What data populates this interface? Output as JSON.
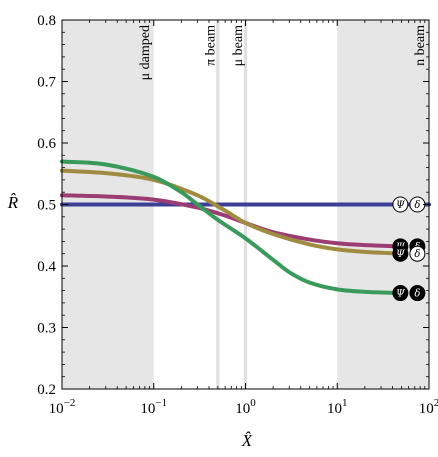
{
  "chart_data": {
    "type": "line",
    "xlabel": "X̂",
    "ylabel": "R̂",
    "xscale": "log",
    "xlim": [
      0.01,
      100
    ],
    "ylim": [
      0.2,
      0.8
    ],
    "xticks": [
      {
        "value": 0.01,
        "base": "10",
        "exp": "−2"
      },
      {
        "value": 0.1,
        "base": "10",
        "exp": "−1"
      },
      {
        "value": 1,
        "base": "10",
        "exp": "0"
      },
      {
        "value": 10,
        "base": "10",
        "exp": "1"
      },
      {
        "value": 100,
        "base": "10",
        "exp": "2"
      }
    ],
    "yticks": [
      {
        "value": 0.2,
        "label": "0.2"
      },
      {
        "value": 0.3,
        "label": "0.3"
      },
      {
        "value": 0.4,
        "label": "0.4"
      },
      {
        "value": 0.5,
        "label": "0.5"
      },
      {
        "value": 0.6,
        "label": "0.6"
      },
      {
        "value": 0.7,
        "label": "0.7"
      },
      {
        "value": 0.8,
        "label": "0.8"
      }
    ],
    "grid": false,
    "regions": [
      {
        "label": "μ damped",
        "from": 0.01,
        "to": 0.1,
        "color": "#e6e6e6"
      },
      {
        "label": "π beam",
        "from": 0.48,
        "to": 0.52,
        "color": "#e0e0e0"
      },
      {
        "label": "μ beam",
        "from": 0.96,
        "to": 1.04,
        "color": "#e0e0e0"
      },
      {
        "label": "n beam",
        "from": 10,
        "to": 100,
        "color": "#e6e6e6"
      }
    ],
    "series": [
      {
        "color": "#3b3f96",
        "x": [
          0.01,
          100
        ],
        "y": [
          0.5,
          0.5
        ]
      },
      {
        "color": "#9b3d74",
        "x": [
          0.01,
          0.03,
          0.1,
          0.3,
          0.6,
          1,
          2,
          5,
          10,
          20,
          50
        ],
        "y": [
          0.515,
          0.513,
          0.508,
          0.495,
          0.482,
          0.47,
          0.455,
          0.443,
          0.437,
          0.434,
          0.432
        ]
      },
      {
        "color": "#a08b40",
        "x": [
          0.01,
          0.03,
          0.1,
          0.3,
          0.6,
          1,
          2,
          5,
          10,
          20,
          50
        ],
        "y": [
          0.555,
          0.551,
          0.54,
          0.515,
          0.49,
          0.47,
          0.452,
          0.435,
          0.427,
          0.423,
          0.42
        ]
      },
      {
        "color": "#3a9a5b",
        "x": [
          0.01,
          0.03,
          0.1,
          0.2,
          0.3,
          0.5,
          1,
          2,
          3,
          5,
          10,
          20,
          50
        ],
        "y": [
          0.57,
          0.565,
          0.545,
          0.52,
          0.5,
          0.475,
          0.445,
          0.41,
          0.39,
          0.373,
          0.362,
          0.358,
          0.356
        ]
      }
    ],
    "markers": [
      {
        "x": 50,
        "y": 0.5,
        "filled": false,
        "psi": "Ψ",
        "delta": "δ"
      },
      {
        "x": 50,
        "y": 0.432,
        "filled": true,
        "psi": "Ψ",
        "delta": "δ"
      },
      {
        "x": 50,
        "y": 0.42,
        "filled": true,
        "psi": "Ψ",
        "delta": "δ",
        "delta_filled": false
      },
      {
        "x": 50,
        "y": 0.356,
        "filled": true,
        "psi": "Ψ",
        "delta": "δ"
      }
    ]
  }
}
